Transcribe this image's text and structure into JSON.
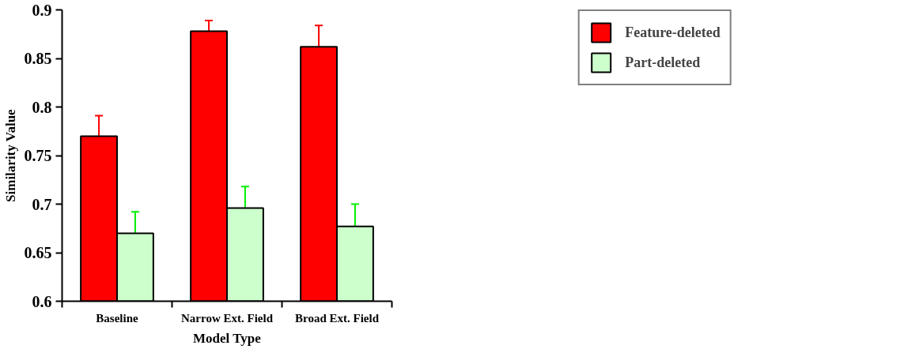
{
  "chart_data": {
    "type": "bar",
    "xlabel": "Model Type",
    "ylabel": "Similarity Value",
    "categories": [
      "Baseline",
      "Narrow Ext. Field",
      "Broad Ext. Field"
    ],
    "series": [
      {
        "name": "Feature-deleted",
        "color": "#ff0000",
        "values": [
          0.77,
          0.878,
          0.862
        ],
        "errors": [
          [
            0.77,
            0.791
          ],
          [
            0.878,
            0.889
          ],
          [
            0.862,
            0.884
          ]
        ]
      },
      {
        "name": "Part-deleted",
        "color": "#ccffcc",
        "values": [
          0.67,
          0.696,
          0.677
        ],
        "errors": [
          [
            0.67,
            0.692
          ],
          [
            0.696,
            0.718
          ],
          [
            0.677,
            0.7
          ]
        ]
      }
    ],
    "ylim": [
      0.6,
      0.9
    ],
    "yticks": [
      0.6,
      0.65,
      0.7,
      0.75,
      0.8,
      0.85,
      0.9
    ],
    "grid": false,
    "legend": "top right"
  }
}
